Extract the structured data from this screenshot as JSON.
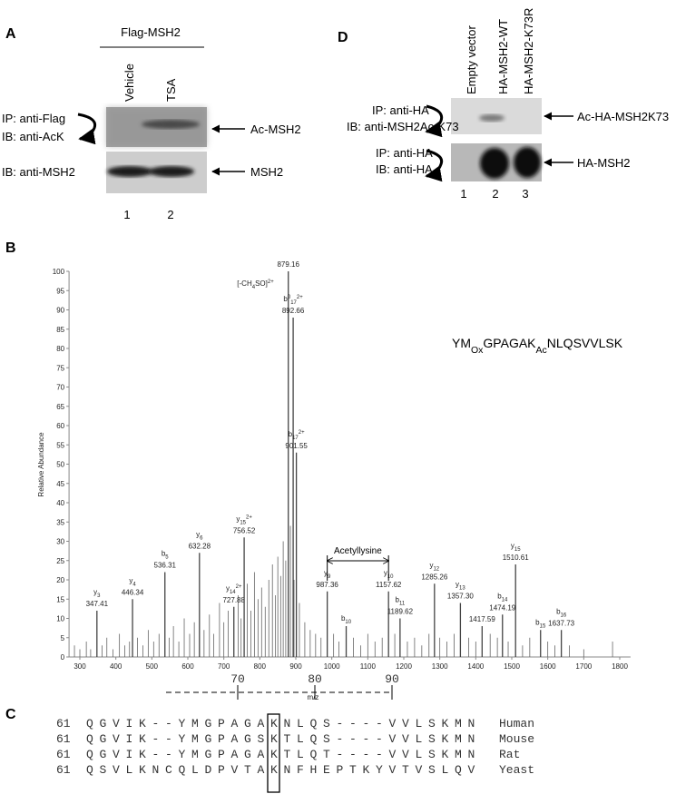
{
  "panel_a": {
    "letter": "A",
    "group": "Flag-MSH2",
    "lanes": [
      "Vehicle",
      "TSA"
    ],
    "blots": [
      {
        "antibodies": [
          "IP: anti-Flag",
          "IB: anti-AcK"
        ],
        "band": "Ac-MSH2"
      },
      {
        "antibodies": [
          "IB: anti-MSH2"
        ],
        "band": "MSH2"
      }
    ],
    "lane_numbers": [
      "1",
      "2"
    ]
  },
  "panel_d": {
    "letter": "D",
    "lanes": [
      "Empty vector",
      "HA-MSH2-WT",
      "HA-MSH2-K73R"
    ],
    "blots": [
      {
        "antibodies": [
          "IP: anti-HA",
          "IB: anti-MSH2Ac-K73"
        ],
        "band": "Ac-HA-MSH2K73"
      },
      {
        "antibodies": [
          "IP: anti-HA",
          "IB: anti-HA"
        ],
        "band": "HA-MSH2"
      }
    ],
    "lane_numbers": [
      "1",
      "2",
      "3"
    ]
  },
  "panel_b": {
    "letter": "B",
    "type": "spectrum",
    "x_label": "m/z",
    "y_label": "Relative Abundance",
    "xlim": [
      270,
      1830
    ],
    "xticks": [
      300,
      400,
      500,
      600,
      700,
      800,
      900,
      1000,
      1100,
      1200,
      1300,
      1400,
      1500,
      1600,
      1700,
      1800
    ],
    "ylim": [
      0,
      100
    ],
    "yticks": [
      0,
      5,
      10,
      15,
      20,
      25,
      30,
      35,
      40,
      45,
      50,
      55,
      60,
      65,
      70,
      75,
      80,
      85,
      90,
      95,
      100
    ],
    "peptide": [
      {
        "text": "YM"
      },
      {
        "sub": "Ox"
      },
      {
        "text": "GPAGAK"
      },
      {
        "sub": "Ac"
      },
      {
        "text": "NLQSVVLSK"
      }
    ],
    "acetyl_label": "Acetyllysine",
    "peaks": [
      {
        "ion": [
          {
            "text": "y"
          },
          {
            "sub": "3"
          }
        ],
        "mz": 347.41,
        "intensity": 12
      },
      {
        "ion": [
          {
            "text": "y"
          },
          {
            "sub": "4"
          }
        ],
        "mz": 446.34,
        "intensity": 15
      },
      {
        "ion": [
          {
            "text": "b"
          },
          {
            "sub": "5"
          }
        ],
        "mz": 536.31,
        "intensity": 22
      },
      {
        "ion": [
          {
            "text": "y"
          },
          {
            "sub": "6"
          }
        ],
        "mz": 632.28,
        "intensity": 27
      },
      {
        "ion": [
          {
            "text": "y"
          },
          {
            "sub": "14"
          },
          {
            "sup": "2+"
          }
        ],
        "mz": 727.88,
        "intensity": 13
      },
      {
        "ion": [
          {
            "text": "y"
          },
          {
            "sub": "15"
          },
          {
            "sup": "2+"
          }
        ],
        "mz": 756.52,
        "intensity": 31
      },
      {
        "ion": [
          {
            "text": "[-CH"
          },
          {
            "sub": "4"
          },
          {
            "text": "SO]"
          },
          {
            "sup": "2+"
          }
        ],
        "mz": 879.16,
        "intensity": 100
      },
      {
        "ion": [
          {
            "text": "b"
          },
          {
            "sup": "0"
          },
          {
            "sub": "17"
          },
          {
            "sup": "2+"
          }
        ],
        "mz": 892.66,
        "intensity": 88
      },
      {
        "ion": [
          {
            "text": "b"
          },
          {
            "sub": "17"
          },
          {
            "sup": "2+"
          }
        ],
        "mz": 901.55,
        "intensity": 53
      },
      {
        "ion": [
          {
            "text": "y"
          },
          {
            "sub": "9"
          }
        ],
        "mz": 987.36,
        "intensity": 17
      },
      {
        "ion": [
          {
            "text": "y"
          },
          {
            "sub": "10"
          }
        ],
        "mz": 1157.62,
        "intensity": 17
      },
      {
        "ion": [
          {
            "text": "b"
          },
          {
            "sub": "11"
          }
        ],
        "mz": 1189.62,
        "intensity": 10
      },
      {
        "ion": [
          {
            "text": "y"
          },
          {
            "sub": "12"
          }
        ],
        "mz": 1285.26,
        "intensity": 19
      },
      {
        "ion": [
          {
            "text": "y"
          },
          {
            "sub": "13"
          }
        ],
        "mz": 1357.3,
        "mz_label": "1357.30",
        "intensity": 14
      },
      {
        "mz": 1417.59,
        "intensity": 8
      },
      {
        "ion": [
          {
            "text": "b"
          },
          {
            "sub": "14"
          }
        ],
        "mz": 1474.19,
        "intensity": 11
      },
      {
        "ion": [
          {
            "text": "y"
          },
          {
            "sub": "15"
          }
        ],
        "mz": 1510.61,
        "intensity": 24
      },
      {
        "ion": [
          {
            "text": "b"
          },
          {
            "sub": "16"
          }
        ],
        "mz": 1637.73,
        "intensity": 7
      }
    ],
    "ion_peaks": [
      {
        "ion": [
          {
            "text": "b"
          },
          {
            "sub": "10"
          }
        ],
        "mz": 1040,
        "intensity": 8
      },
      {
        "ion": [
          {
            "text": "b"
          },
          {
            "sub": "15"
          }
        ],
        "mz": 1580,
        "intensity": 7
      }
    ],
    "minor_peaks": [
      [
        285,
        3
      ],
      [
        300,
        2
      ],
      [
        318,
        4
      ],
      [
        330,
        2
      ],
      [
        362,
        3
      ],
      [
        375,
        5
      ],
      [
        392,
        2
      ],
      [
        410,
        6
      ],
      [
        425,
        3
      ],
      [
        438,
        4
      ],
      [
        460,
        5
      ],
      [
        475,
        3
      ],
      [
        490,
        7
      ],
      [
        505,
        4
      ],
      [
        520,
        6
      ],
      [
        548,
        5
      ],
      [
        560,
        8
      ],
      [
        575,
        4
      ],
      [
        590,
        10
      ],
      [
        605,
        6
      ],
      [
        618,
        9
      ],
      [
        645,
        7
      ],
      [
        660,
        11
      ],
      [
        672,
        6
      ],
      [
        688,
        14
      ],
      [
        700,
        9
      ],
      [
        712,
        12
      ],
      [
        740,
        16
      ],
      [
        748,
        10
      ],
      [
        765,
        19
      ],
      [
        775,
        12
      ],
      [
        785,
        22
      ],
      [
        795,
        15
      ],
      [
        805,
        18
      ],
      [
        815,
        13
      ],
      [
        825,
        20
      ],
      [
        835,
        24
      ],
      [
        843,
        16
      ],
      [
        850,
        26
      ],
      [
        858,
        21
      ],
      [
        865,
        30
      ],
      [
        872,
        25
      ],
      [
        885,
        34
      ],
      [
        895,
        20
      ],
      [
        910,
        14
      ],
      [
        925,
        9
      ],
      [
        940,
        7
      ],
      [
        955,
        6
      ],
      [
        970,
        5
      ],
      [
        1005,
        6
      ],
      [
        1020,
        4
      ],
      [
        1060,
        5
      ],
      [
        1080,
        3
      ],
      [
        1100,
        6
      ],
      [
        1120,
        4
      ],
      [
        1140,
        5
      ],
      [
        1175,
        6
      ],
      [
        1210,
        4
      ],
      [
        1230,
        5
      ],
      [
        1250,
        3
      ],
      [
        1270,
        6
      ],
      [
        1300,
        5
      ],
      [
        1320,
        4
      ],
      [
        1340,
        6
      ],
      [
        1380,
        5
      ],
      [
        1400,
        4
      ],
      [
        1440,
        6
      ],
      [
        1460,
        5
      ],
      [
        1490,
        4
      ],
      [
        1530,
        3
      ],
      [
        1550,
        5
      ],
      [
        1600,
        4
      ],
      [
        1620,
        3
      ],
      [
        1660,
        3
      ],
      [
        1700,
        2
      ],
      [
        1780,
        4
      ]
    ]
  },
  "panel_c": {
    "letter": "C",
    "ruler": [
      "70",
      "80",
      "90"
    ],
    "rows": [
      {
        "start": "61",
        "sequence": "QGVIK--YMGPAGAKNLQS----VVLSKMN",
        "species": "Human"
      },
      {
        "start": "61",
        "sequence": "QGVIK--YMGPAGSKTLQS----VVLSKMN",
        "species": "Mouse"
      },
      {
        "start": "61",
        "sequence": "QGVIK--YMGPAGAKTLQT----VVLSKMN",
        "species": "Rat"
      },
      {
        "start": "61",
        "sequence": "QSVLKNCQLDPVTAKNFHEPTKYVTVSLQV",
        "species": "Yeast"
      }
    ]
  }
}
